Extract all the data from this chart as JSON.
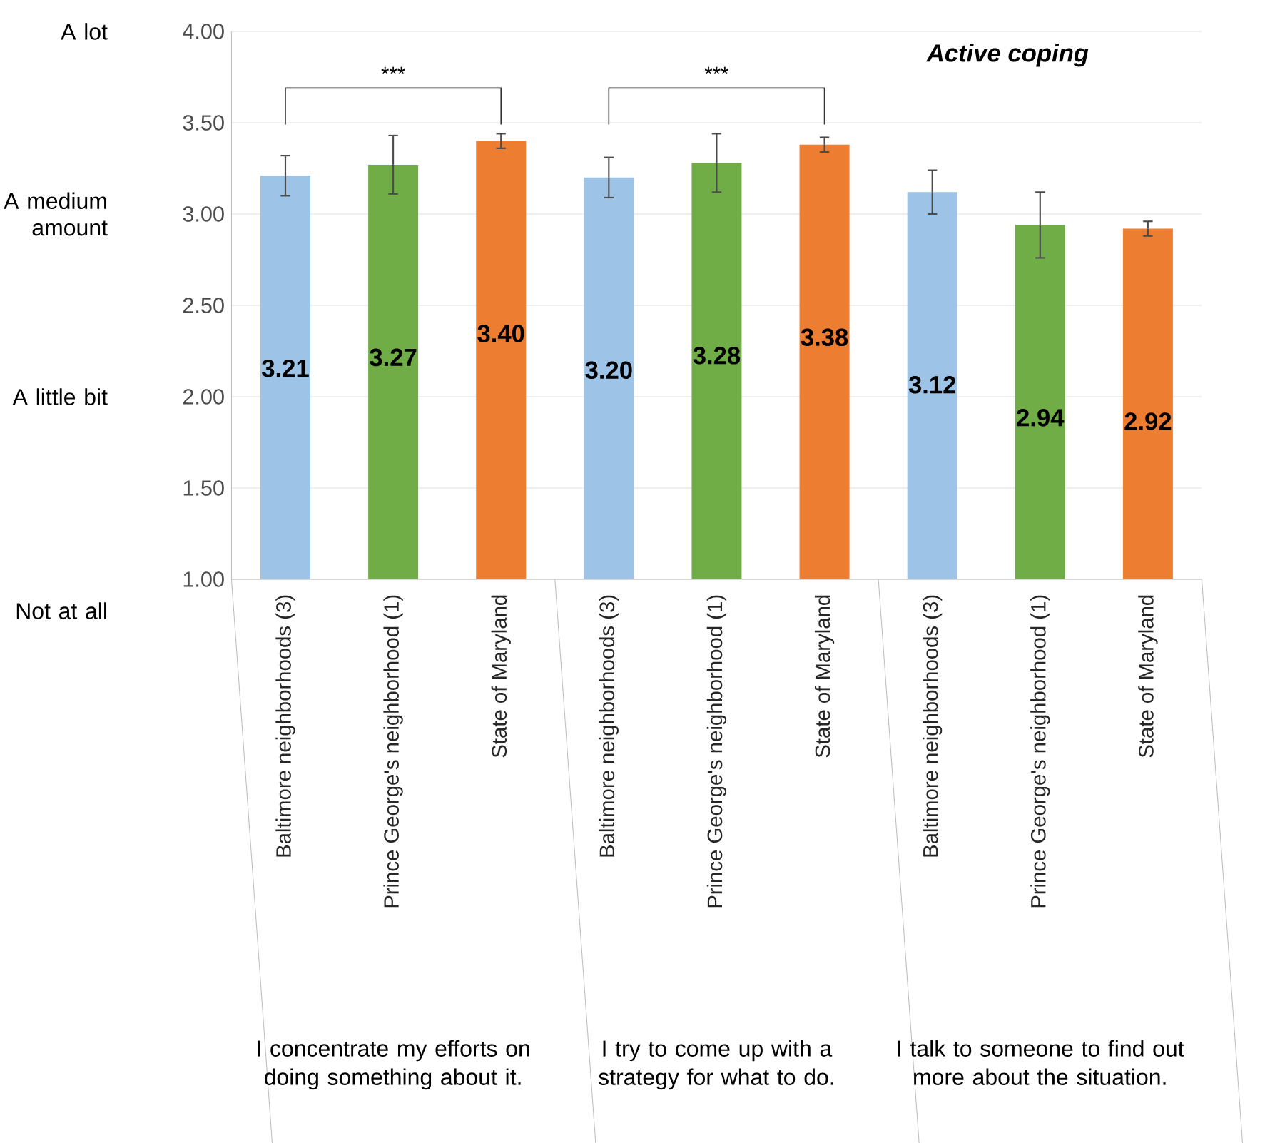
{
  "chart_data": {
    "type": "bar",
    "title": "Active coping",
    "categories": [
      "Baltimore neighborhoods (3)",
      "Prince George's neighborhood (1)",
      "State of Maryland",
      "Baltimore neighborhoods (3)",
      "Prince George's neighborhood (1)",
      "State of Maryland",
      "Baltimore neighborhoods (3)",
      "Prince George's neighborhood (1)",
      "State of Maryland"
    ],
    "values": [
      3.21,
      3.27,
      3.4,
      3.2,
      3.28,
      3.38,
      3.12,
      2.94,
      2.92
    ],
    "errors": [
      0.11,
      0.16,
      0.04,
      0.11,
      0.16,
      0.04,
      0.12,
      0.18,
      0.04
    ],
    "colors": [
      "#9dc3e6",
      "#70ad47",
      "#ed7d31",
      "#9dc3e6",
      "#70ad47",
      "#ed7d31",
      "#9dc3e6",
      "#70ad47",
      "#ed7d31"
    ],
    "value_labels": [
      "3.21",
      "3.27",
      "3.40",
      "3.20",
      "3.28",
      "3.38",
      "3.12",
      "2.94",
      "2.92"
    ],
    "ylim": [
      1,
      4
    ],
    "yticks": [
      {
        "value": 1,
        "label": "1.00"
      },
      {
        "value": 1.5,
        "label": "1.50"
      },
      {
        "value": 2,
        "label": "2.00"
      },
      {
        "value": 2.5,
        "label": "2.50"
      },
      {
        "value": 3,
        "label": "3.00"
      },
      {
        "value": 3.5,
        "label": "3.50"
      },
      {
        "value": 4,
        "label": "4.00"
      }
    ],
    "grid": "y",
    "annotations": [
      "A lot",
      "A medium amount",
      "A little bit",
      "Not at all",
      "***",
      "***",
      "I concentrate my efforts on doing something about it.",
      "I try to come up with a strategy for what to do.",
      "I talk to someone to find out more about the situation."
    ]
  }
}
